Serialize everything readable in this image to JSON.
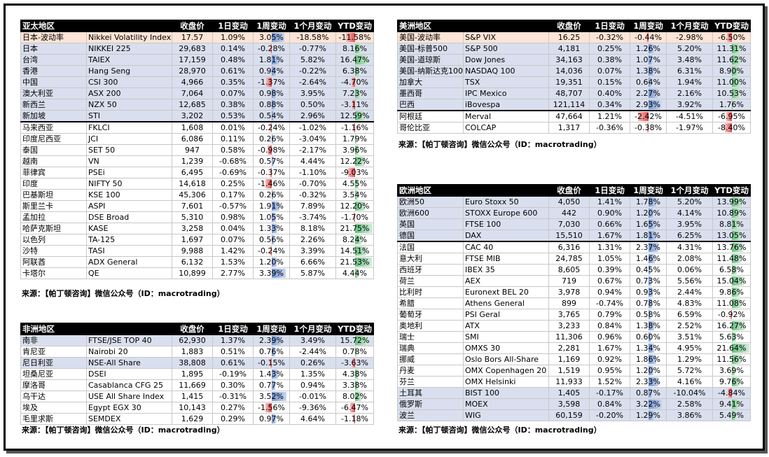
{
  "header_labels": {
    "close": "收盘价",
    "d1": "1日变动",
    "w1": "1周变动",
    "m1": "1个月变动",
    "ytd": "YTD变动"
  },
  "source_text": "来源：【帕丁顿咨询】微信公众号（ID：macrotrading）",
  "colors": {
    "header_bg": "#000000",
    "row_highlight": "#d9dfee",
    "row_alt": "#fce4d6",
    "bar_pos": "#6f93d2",
    "bar_neg": "#e84c4c",
    "bar_green": "#63be7b"
  },
  "tables": [
    {
      "id": "asia",
      "title": "亚太地区",
      "rows": [
        {
          "name": "日本-波动率",
          "index": "Nikkei Volatility Index",
          "close": "17.57",
          "d1": "1.09%",
          "w1": "3.05%",
          "m1": "-18.58%",
          "ytd": "-11.58%",
          "w1v": 3.05,
          "ytdv": -11.58,
          "style": "alt"
        },
        {
          "name": "日本",
          "index": "NIKKEI 225",
          "close": "29,683",
          "d1": "0.14%",
          "w1": "-0.28%",
          "m1": "-0.77%",
          "ytd": "8.16%",
          "w1v": -0.28,
          "ytdv": 8.16,
          "style": "hl"
        },
        {
          "name": "台湾",
          "index": "TAIEX",
          "close": "17,159",
          "d1": "0.48%",
          "w1": "1.81%",
          "m1": "5.82%",
          "ytd": "16.47%",
          "w1v": 1.81,
          "ytdv": 16.47,
          "style": "hl"
        },
        {
          "name": "香港",
          "index": "Hang Seng",
          "close": "28,970",
          "d1": "0.61%",
          "w1": "0.94%",
          "m1": "-0.22%",
          "ytd": "6.38%",
          "w1v": 0.94,
          "ytdv": 6.38,
          "style": "hl"
        },
        {
          "name": "中国",
          "index": "CSI 300",
          "close": "4,966",
          "d1": "0.35%",
          "w1": "-1.37%",
          "m1": "-2.64%",
          "ytd": "-4.70%",
          "w1v": -1.37,
          "ytdv": -4.7,
          "style": "hl"
        },
        {
          "name": "澳大利亚",
          "index": "ASX 200",
          "close": "7,064",
          "d1": "0.07%",
          "w1": "0.98%",
          "m1": "3.95%",
          "ytd": "7.23%",
          "w1v": 0.98,
          "ytdv": 7.23,
          "style": "hl"
        },
        {
          "name": "新西兰",
          "index": "NZX 50",
          "close": "12,685",
          "d1": "0.38%",
          "w1": "0.88%",
          "m1": "0.50%",
          "ytd": "-3.11%",
          "w1v": 0.88,
          "ytdv": -3.11,
          "style": "hl"
        },
        {
          "name": "新加坡",
          "index": "STI",
          "close": "3,202",
          "d1": "0.53%",
          "w1": "0.54%",
          "m1": "2.96%",
          "ytd": "12.59%",
          "w1v": 0.54,
          "ytdv": 12.59,
          "style": "hl",
          "sep": true
        },
        {
          "name": "马来西亚",
          "index": "FKLCI",
          "close": "1,608",
          "d1": "0.01%",
          "w1": "-0.24%",
          "m1": "-1.02%",
          "ytd": "-1.16%",
          "w1v": -0.24,
          "ytdv": -1.16,
          "style": ""
        },
        {
          "name": "印度尼西亚",
          "index": "JCI",
          "close": "6,086",
          "d1": "0.11%",
          "w1": "0.26%",
          "m1": "-3.04%",
          "ytd": "1.79%",
          "w1v": 0.26,
          "ytdv": 1.79,
          "style": ""
        },
        {
          "name": "泰国",
          "index": "SET 50",
          "close": "947",
          "d1": "0.58%",
          "w1": "-0.98%",
          "m1": "-2.17%",
          "ytd": "3.96%",
          "w1v": -0.98,
          "ytdv": 3.96,
          "style": ""
        },
        {
          "name": "越南",
          "index": "VN",
          "close": "1,239",
          "d1": "-0.68%",
          "w1": "0.57%",
          "m1": "4.44%",
          "ytd": "12.22%",
          "w1v": 0.57,
          "ytdv": 12.22,
          "style": ""
        },
        {
          "name": "菲律宾",
          "index": "PSEi",
          "close": "6,495",
          "d1": "-0.69%",
          "w1": "-0.37%",
          "m1": "-1.10%",
          "ytd": "-9.03%",
          "w1v": -0.37,
          "ytdv": -9.03,
          "style": ""
        },
        {
          "name": "印度",
          "index": "NIFTY 50",
          "close": "14,618",
          "d1": "0.25%",
          "w1": "-1.46%",
          "m1": "-0.70%",
          "ytd": "4.55%",
          "w1v": -1.46,
          "ytdv": 4.55,
          "style": ""
        },
        {
          "name": "巴基斯坦",
          "index": "KSE 100",
          "close": "45,306",
          "d1": "0.17%",
          "w1": "0.26%",
          "m1": "-0.32%",
          "ytd": "3.54%",
          "w1v": 0.26,
          "ytdv": 3.54,
          "style": ""
        },
        {
          "name": "斯里兰卡",
          "index": "ASPI",
          "close": "7,601",
          "d1": "-0.57%",
          "w1": "1.91%",
          "m1": "7.89%",
          "ytd": "12.20%",
          "w1v": 1.91,
          "ytdv": 12.2,
          "style": ""
        },
        {
          "name": "孟加拉",
          "index": "DSE Broad",
          "close": "5,310",
          "d1": "0.98%",
          "w1": "1.05%",
          "m1": "-3.74%",
          "ytd": "-1.70%",
          "w1v": 1.05,
          "ytdv": -1.7,
          "style": ""
        },
        {
          "name": "哈萨克斯坦",
          "index": "KASE",
          "close": "3,258",
          "d1": "0.04%",
          "w1": "1.33%",
          "m1": "8.18%",
          "ytd": "21.75%",
          "w1v": 1.33,
          "ytdv": 21.75,
          "style": ""
        },
        {
          "name": "以色列",
          "index": "TA-125",
          "close": "1,697",
          "d1": "0.07%",
          "w1": "0.56%",
          "m1": "2.26%",
          "ytd": "8.24%",
          "w1v": 0.56,
          "ytdv": 8.24,
          "style": ""
        },
        {
          "name": "沙特",
          "index": "TASI",
          "close": "9,988",
          "d1": "1.42%",
          "w1": "-0.24%",
          "m1": "3.39%",
          "ytd": "14.51%",
          "w1v": -0.24,
          "ytdv": 14.51,
          "style": ""
        },
        {
          "name": "阿联酋",
          "index": "ADX General",
          "close": "6,132",
          "d1": "1.53%",
          "w1": "1.20%",
          "m1": "6.66%",
          "ytd": "21.53%",
          "w1v": 1.2,
          "ytdv": 21.53,
          "style": ""
        },
        {
          "name": "卡塔尔",
          "index": "QE",
          "close": "10,899",
          "d1": "2.77%",
          "w1": "3.39%",
          "m1": "5.87%",
          "ytd": "4.44%",
          "w1v": 3.39,
          "ytdv": 4.44,
          "style": ""
        }
      ]
    },
    {
      "id": "africa",
      "title": "非洲地区",
      "rows": [
        {
          "name": "南非",
          "index": "FTSE/JSE TOP 40",
          "close": "62,930",
          "d1": "1.37%",
          "w1": "2.39%",
          "m1": "3.49%",
          "ytd": "15.72%",
          "w1v": 2.39,
          "ytdv": 15.72,
          "style": "hl"
        },
        {
          "name": "肯尼亚",
          "index": "Nairobi 20",
          "close": "1,883",
          "d1": "0.51%",
          "w1": "0.76%",
          "m1": "-2.44%",
          "ytd": "0.78%",
          "w1v": 0.76,
          "ytdv": 0.78,
          "style": ""
        },
        {
          "name": "尼日利亚",
          "index": "NSE-All Share",
          "close": "38,808",
          "d1": "0.61%",
          "w1": "-0.15%",
          "m1": "0.26%",
          "ytd": "-3.63%",
          "w1v": -0.15,
          "ytdv": -3.63,
          "style": "hl"
        },
        {
          "name": "坦桑尼亚",
          "index": "DSEI",
          "close": "1,895",
          "d1": "-0.19%",
          "w1": "1.43%",
          "m1": "1.35%",
          "ytd": "4.38%",
          "w1v": 1.43,
          "ytdv": 4.38,
          "style": ""
        },
        {
          "name": "摩洛哥",
          "index": "Casablanca CFG 25",
          "close": "11,669",
          "d1": "0.30%",
          "w1": "0.77%",
          "m1": "0.94%",
          "ytd": "3.38%",
          "w1v": 0.77,
          "ytdv": 3.38,
          "style": ""
        },
        {
          "name": "乌干达",
          "index": "USE All Share Index",
          "close": "1,415",
          "d1": "-0.31%",
          "w1": "3.52%",
          "m1": "-0.01%",
          "ytd": "8.02%",
          "w1v": 3.52,
          "ytdv": 8.02,
          "style": ""
        },
        {
          "name": "埃及",
          "index": "Egypt EGX 30",
          "close": "10,143",
          "d1": "0.27%",
          "w1": "-1.56%",
          "m1": "-9.36%",
          "ytd": "-6.47%",
          "w1v": -1.56,
          "ytdv": -6.47,
          "style": ""
        },
        {
          "name": "毛里求斯",
          "index": "SEMDEX",
          "close": "1,629",
          "d1": "0.29%",
          "w1": "0.97%",
          "m1": "4.64%",
          "ytd": "-1.18%",
          "w1v": 0.97,
          "ytdv": -1.18,
          "style": ""
        }
      ]
    },
    {
      "id": "americas",
      "title": "美洲地区",
      "rows": [
        {
          "name": "美国-波动率",
          "index": "S&P VIX",
          "close": "16.25",
          "d1": "-0.32%",
          "w1": "-0.44%",
          "m1": "-2.98%",
          "ytd": "-6.50%",
          "w1v": -0.44,
          "ytdv": -6.5,
          "style": "alt"
        },
        {
          "name": "美国-标普500",
          "index": "S&P 500",
          "close": "4,181",
          "d1": "0.25%",
          "w1": "1.26%",
          "m1": "5.20%",
          "ytd": "11.31%",
          "w1v": 1.26,
          "ytdv": 11.31,
          "style": "hl"
        },
        {
          "name": "美国-道琼斯",
          "index": "Dow Jones",
          "close": "34,163",
          "d1": "0.38%",
          "w1": "1.07%",
          "m1": "3.48%",
          "ytd": "11.62%",
          "w1v": 1.07,
          "ytdv": 11.62,
          "style": "hl"
        },
        {
          "name": "美国-纳斯达克100",
          "index": "NASDAQ 100",
          "close": "14,036",
          "d1": "0.07%",
          "w1": "1.38%",
          "m1": "6.31%",
          "ytd": "8.90%",
          "w1v": 1.38,
          "ytdv": 8.9,
          "style": "hl"
        },
        {
          "name": "加拿大",
          "index": "TSX",
          "close": "19,351",
          "d1": "0.15%",
          "w1": "0.64%",
          "m1": "1.94%",
          "ytd": "11.00%",
          "w1v": 0.64,
          "ytdv": 11.0,
          "style": "hl"
        },
        {
          "name": "墨西哥",
          "index": "IPC Mexico",
          "close": "48,707",
          "d1": "0.40%",
          "w1": "2.27%",
          "m1": "2.16%",
          "ytd": "10.53%",
          "w1v": 2.27,
          "ytdv": 10.53,
          "style": "hl"
        },
        {
          "name": "巴西",
          "index": "iBovespa",
          "close": "121,114",
          "d1": "0.34%",
          "w1": "2.93%",
          "m1": "3.92%",
          "ytd": "1.76%",
          "w1v": 2.93,
          "ytdv": 1.76,
          "style": "hl",
          "sep": true
        },
        {
          "name": "阿根廷",
          "index": "Merval",
          "close": "47,664",
          "d1": "1.21%",
          "w1": "-2.42%",
          "m1": "-4.51%",
          "ytd": "-6.95%",
          "w1v": -2.42,
          "ytdv": -6.95,
          "style": ""
        },
        {
          "name": "哥伦比亚",
          "index": "COLCAP",
          "close": "1,317",
          "d1": "-0.36%",
          "w1": "-0.38%",
          "m1": "-1.97%",
          "ytd": "-8.40%",
          "w1v": -0.38,
          "ytdv": -8.4,
          "style": ""
        }
      ]
    },
    {
      "id": "europe",
      "title": "欧洲地区",
      "rows": [
        {
          "name": "欧洲50",
          "index": "Euro Stoxx 50",
          "close": "4,050",
          "d1": "1.41%",
          "w1": "1.78%",
          "m1": "5.20%",
          "ytd": "13.99%",
          "w1v": 1.78,
          "ytdv": 13.99,
          "style": "hl"
        },
        {
          "name": "欧洲600",
          "index": "STOXX Europe 600",
          "close": "442",
          "d1": "0.90%",
          "w1": "1.20%",
          "m1": "4.14%",
          "ytd": "10.89%",
          "w1v": 1.2,
          "ytdv": 10.89,
          "style": "hl"
        },
        {
          "name": "英国",
          "index": "FTSE 100",
          "close": "7,030",
          "d1": "0.66%",
          "w1": "1.65%",
          "m1": "3.95%",
          "ytd": "8.81%",
          "w1v": 1.65,
          "ytdv": 8.81,
          "style": "hl"
        },
        {
          "name": "德国",
          "index": "DAX",
          "close": "15,510",
          "d1": "1.67%",
          "w1": "1.81%",
          "m1": "6.25%",
          "ytd": "13.05%",
          "w1v": 1.81,
          "ytdv": 13.05,
          "style": "hl",
          "sep": true
        },
        {
          "name": "法国",
          "index": "CAC 40",
          "close": "6,316",
          "d1": "1.31%",
          "w1": "2.37%",
          "m1": "4.31%",
          "ytd": "13.76%",
          "w1v": 2.37,
          "ytdv": 13.76,
          "style": ""
        },
        {
          "name": "意大利",
          "index": "FTSE MIB",
          "close": "24,785",
          "d1": "1.05%",
          "w1": "1.46%",
          "m1": "2.08%",
          "ytd": "11.48%",
          "w1v": 1.46,
          "ytdv": 11.48,
          "style": ""
        },
        {
          "name": "西班牙",
          "index": "IBEX 35",
          "close": "8,605",
          "d1": "0.39%",
          "w1": "0.45%",
          "m1": "0.06%",
          "ytd": "6.58%",
          "w1v": 0.45,
          "ytdv": 6.58,
          "style": ""
        },
        {
          "name": "荷兰",
          "index": "AEX",
          "close": "719",
          "d1": "0.67%",
          "w1": "0.73%",
          "m1": "5.56%",
          "ytd": "15.04%",
          "w1v": 0.73,
          "ytdv": 15.04,
          "style": ""
        },
        {
          "name": "比利时",
          "index": "Euronext BEL 20",
          "close": "3,978",
          "d1": "0.94%",
          "w1": "0.93%",
          "m1": "2.44%",
          "ytd": "9.86%",
          "w1v": 0.93,
          "ytdv": 9.86,
          "style": ""
        },
        {
          "name": "希腊",
          "index": "Athens General",
          "close": "899",
          "d1": "-0.74%",
          "w1": "0.78%",
          "m1": "4.83%",
          "ytd": "11.08%",
          "w1v": 0.78,
          "ytdv": 11.08,
          "style": ""
        },
        {
          "name": "葡萄牙",
          "index": "PSI Geral",
          "close": "3,765",
          "d1": "0.79%",
          "w1": "0.58%",
          "m1": "6.59%",
          "ytd": "-0.92%",
          "w1v": 0.58,
          "ytdv": -0.92,
          "style": ""
        },
        {
          "name": "奥地利",
          "index": "ATX",
          "close": "3,233",
          "d1": "0.84%",
          "w1": "1.38%",
          "m1": "2.52%",
          "ytd": "16.27%",
          "w1v": 1.38,
          "ytdv": 16.27,
          "style": ""
        },
        {
          "name": "瑞士",
          "index": "SMI",
          "close": "11,306",
          "d1": "0.96%",
          "w1": "0.60%",
          "m1": "3.51%",
          "ytd": "5.63%",
          "w1v": 0.6,
          "ytdv": 5.63,
          "style": ""
        },
        {
          "name": "瑞典",
          "index": "OMXS 30",
          "close": "2,281",
          "d1": "1.67%",
          "w1": "1.34%",
          "m1": "4.95%",
          "ytd": "21.64%",
          "w1v": 1.34,
          "ytdv": 21.64,
          "style": ""
        },
        {
          "name": "挪威",
          "index": "Oslo Bors All-Share",
          "close": "1,169",
          "d1": "0.92%",
          "w1": "1.86%",
          "m1": "1.29%",
          "ytd": "11.56%",
          "w1v": 1.86,
          "ytdv": 11.56,
          "style": ""
        },
        {
          "name": "丹麦",
          "index": "OMX Copenhagen 20",
          "close": "1,519",
          "d1": "0.95%",
          "w1": "1.20%",
          "m1": "5.72%",
          "ytd": "3.69%",
          "w1v": 1.2,
          "ytdv": 3.69,
          "style": ""
        },
        {
          "name": "芬兰",
          "index": "OMX Helsinki",
          "close": "11,933",
          "d1": "1.52%",
          "w1": "2.33%",
          "m1": "4.16%",
          "ytd": "9.76%",
          "w1v": 2.33,
          "ytdv": 9.76,
          "style": ""
        },
        {
          "name": "土耳其",
          "index": "BIST 100",
          "close": "1,405",
          "d1": "-0.17%",
          "w1": "0.87%",
          "m1": "-10.04%",
          "ytd": "-4.84%",
          "w1v": 0.87,
          "ytdv": -4.84,
          "style": "hl"
        },
        {
          "name": "俄罗斯",
          "index": "MOEX",
          "close": "3,598",
          "d1": "0.84%",
          "w1": "3.22%",
          "m1": "2.58%",
          "ytd": "9.41%",
          "w1v": 3.22,
          "ytdv": 9.41,
          "style": "hl"
        },
        {
          "name": "波兰",
          "index": "WIG",
          "close": "60,159",
          "d1": "-0.20%",
          "w1": "1.29%",
          "m1": "3.86%",
          "ytd": "5.49%",
          "w1v": 1.29,
          "ytdv": 5.49,
          "style": "hl"
        }
      ]
    }
  ]
}
